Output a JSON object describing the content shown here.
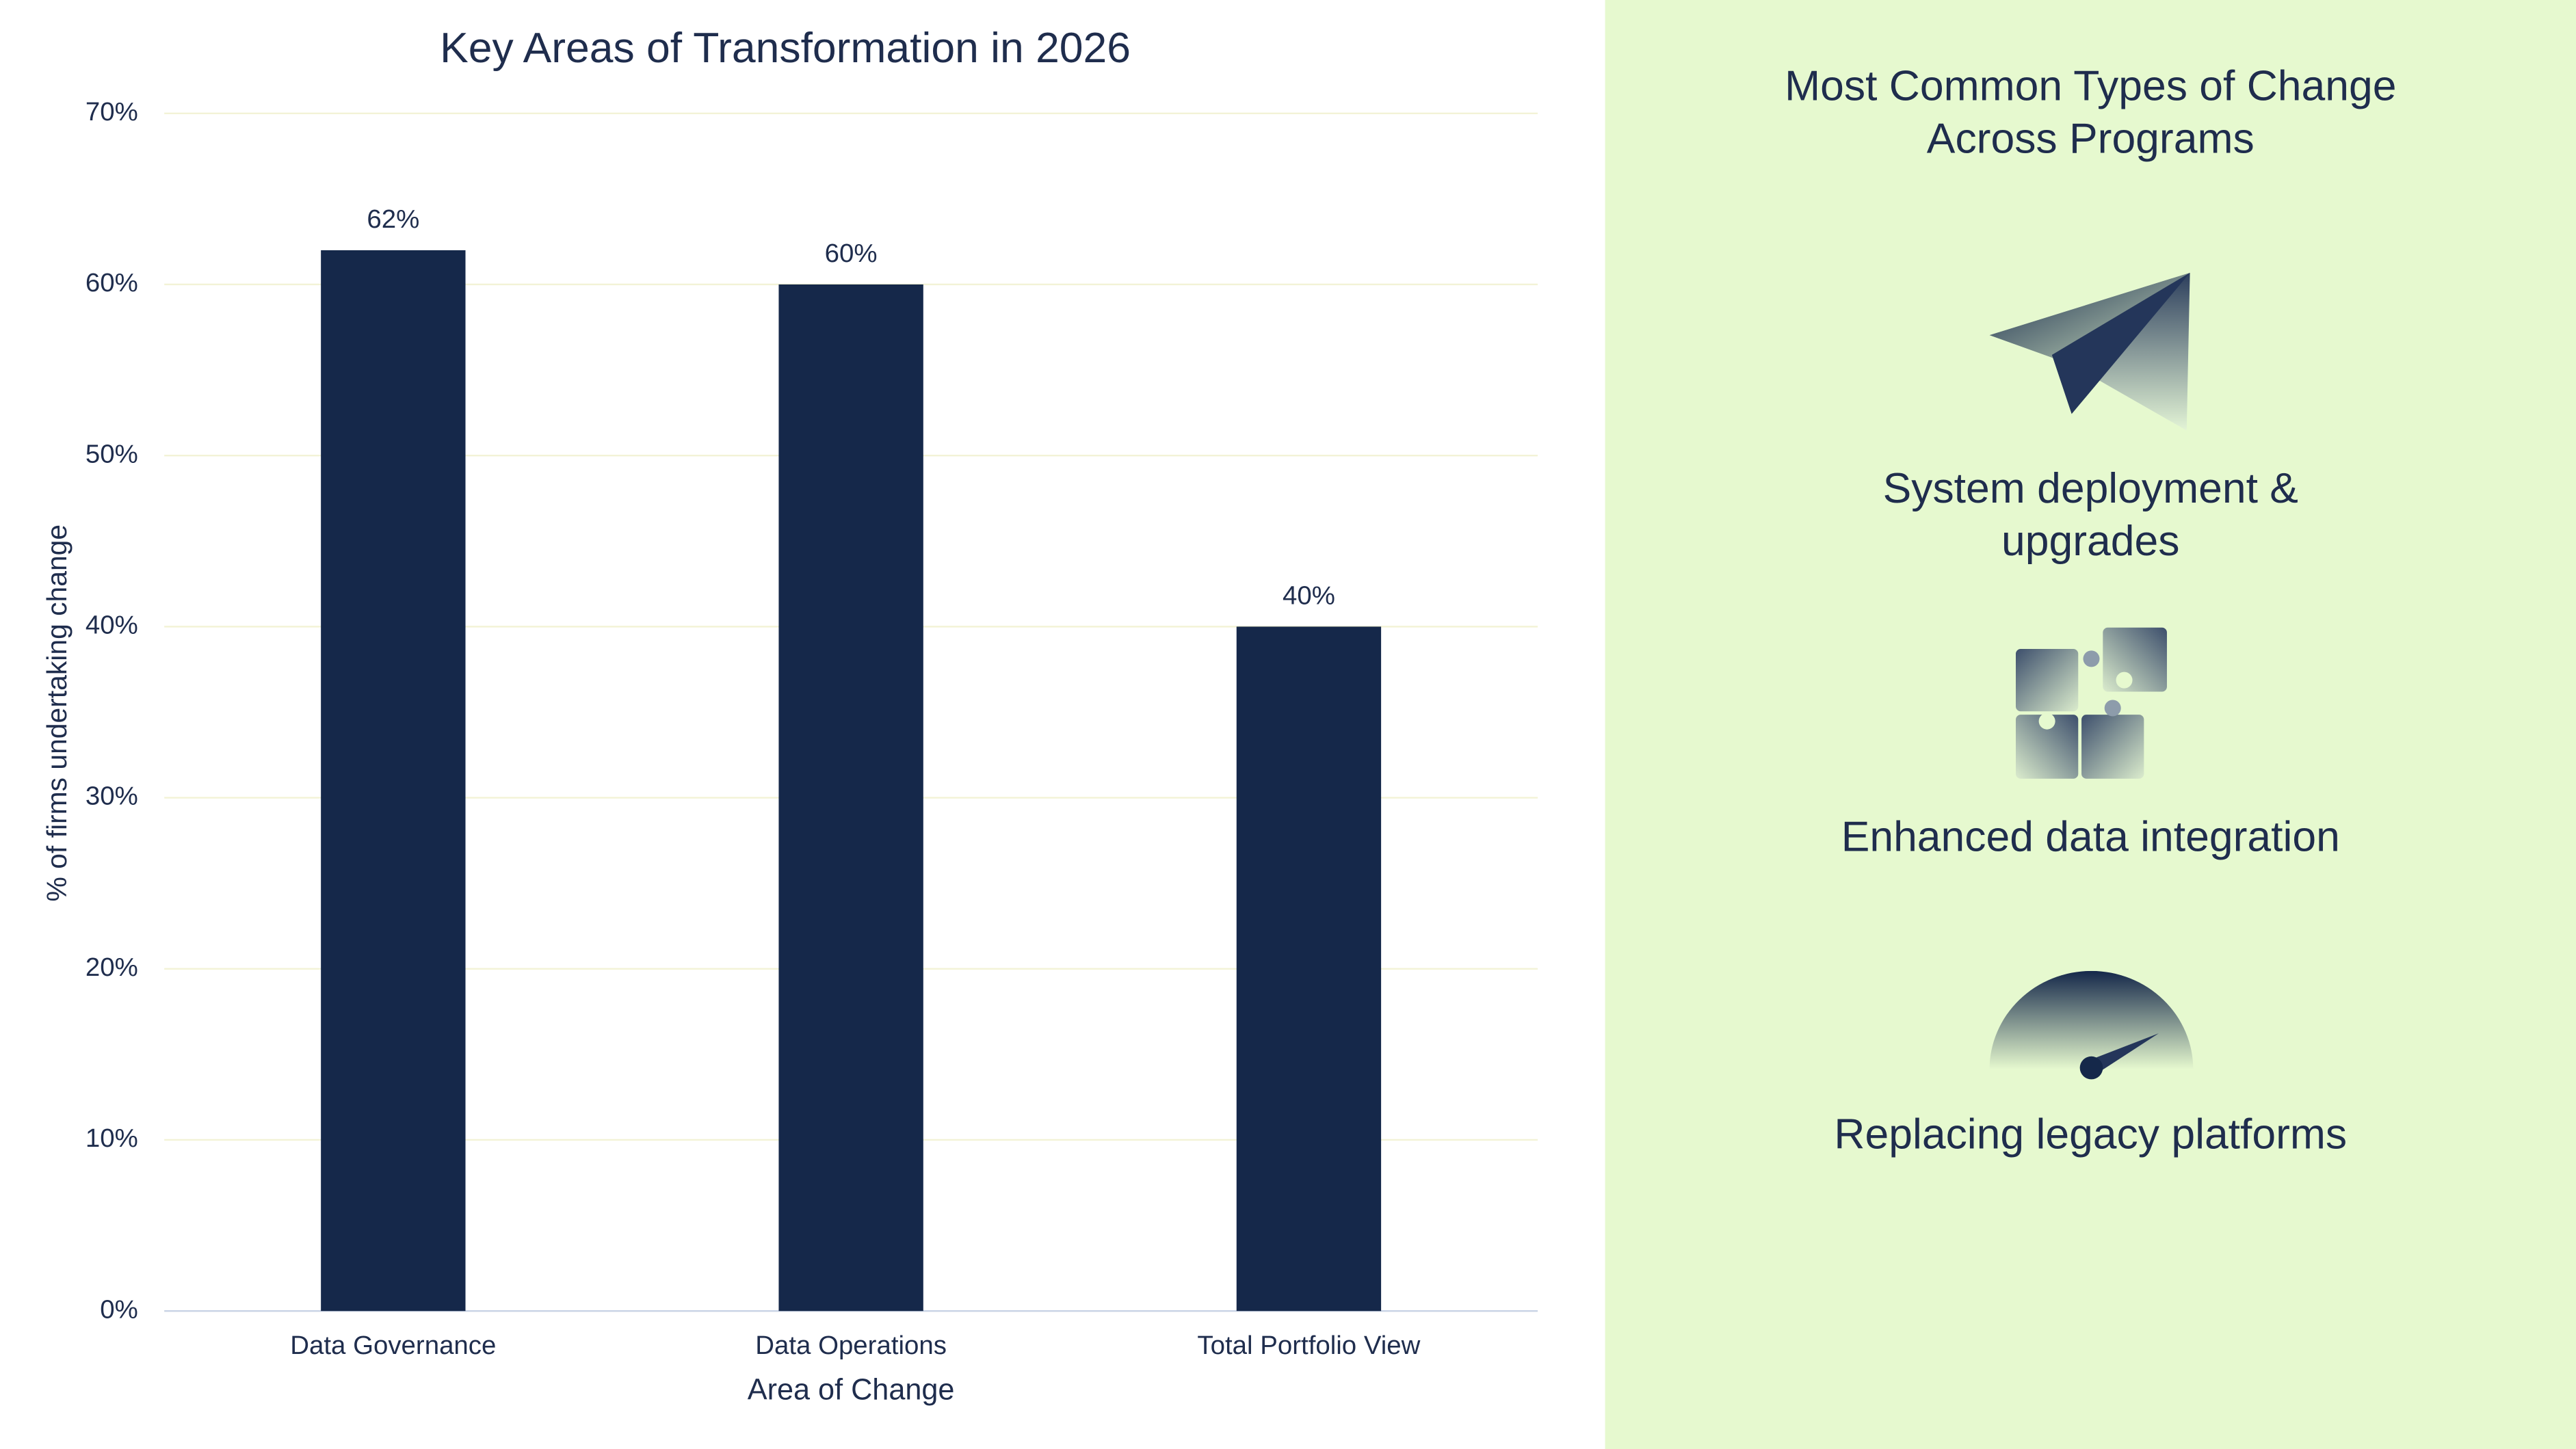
{
  "chart_data": {
    "type": "bar",
    "title": "Key Areas of Transformation in 2026",
    "x_label": "Area of Change",
    "y_label": "% of firms undertaking change",
    "categories": [
      "Data Governance",
      "Data Operations",
      "Total Portfolio View"
    ],
    "values": [
      62,
      60,
      40
    ],
    "value_labels": [
      "62%",
      "60%",
      "40%"
    ],
    "color": "#15284a",
    "ylim": [
      0,
      70
    ],
    "yticks": [
      {
        "value": 0,
        "label": "0%"
      },
      {
        "value": 10,
        "label": "10%"
      },
      {
        "value": 20,
        "label": "20%"
      },
      {
        "value": 30,
        "label": "30%"
      },
      {
        "value": 40,
        "label": "40%"
      },
      {
        "value": 50,
        "label": "50%"
      },
      {
        "value": 60,
        "label": "60%"
      },
      {
        "value": 70,
        "label": "70%"
      }
    ],
    "grid": true
  },
  "panel": {
    "title": "Most Common Types of Change Across Programs",
    "items": [
      {
        "label": "System deployment & upgrades"
      },
      {
        "label": "Enhanced data integration"
      },
      {
        "label": "Replacing legacy platforms"
      }
    ]
  }
}
